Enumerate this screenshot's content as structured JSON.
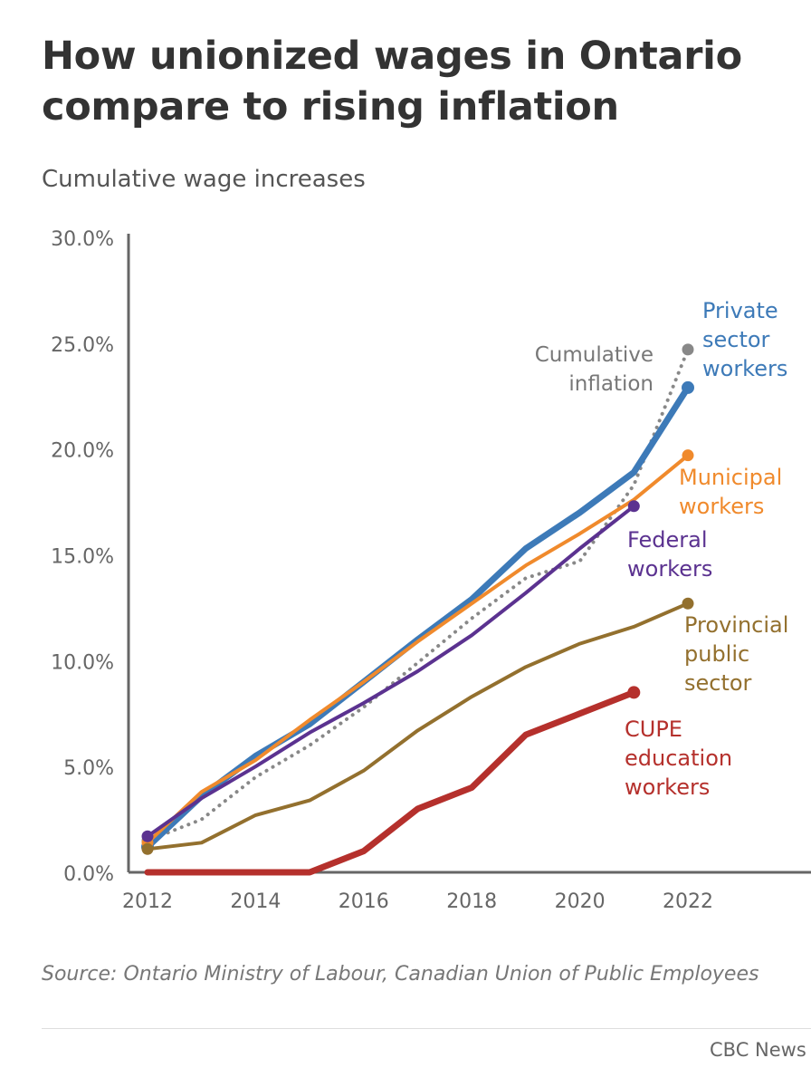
{
  "title": "How unionized wages in Ontario compare to rising inflation",
  "subtitle": "Cumulative wage increases",
  "source": "Source: Ontario Ministry of Labour, Canadian Union of Public Employees",
  "credit": "CBC News",
  "chart_data": {
    "type": "line",
    "ylabel": "Cumulative wage increases",
    "xlim": [
      2012,
      2022
    ],
    "ylim": [
      0,
      30
    ],
    "x_ticks": [
      2012,
      2014,
      2016,
      2018,
      2020,
      2022
    ],
    "y_ticks": [
      0,
      5,
      10,
      15,
      20,
      25,
      30
    ],
    "y_tick_labels": [
      "0.0%",
      "5.0%",
      "10.0%",
      "15.0%",
      "20.0%",
      "25.0%",
      "30.0%"
    ],
    "grid": false,
    "legend": "direct labels at line ends",
    "series": [
      {
        "name": "Cumulative inflation",
        "label_lines": [
          "Cumulative",
          "inflation"
        ],
        "color": "#888888",
        "style": "dotted",
        "x": [
          2012,
          2013,
          2014,
          2015,
          2016,
          2017,
          2018,
          2019,
          2020,
          2021,
          2022
        ],
        "y": [
          1.5,
          2.5,
          4.5,
          6.0,
          7.8,
          9.9,
          12.0,
          13.9,
          14.7,
          18.3,
          24.7
        ]
      },
      {
        "name": "Private sector workers",
        "label_lines": [
          "Private",
          "sector",
          "workers"
        ],
        "color": "#3d7ab8",
        "style": "thick",
        "x": [
          2012,
          2013,
          2014,
          2015,
          2016,
          2017,
          2018,
          2019,
          2020,
          2021,
          2022
        ],
        "y": [
          1.2,
          3.6,
          5.5,
          7.0,
          9.0,
          11.0,
          12.9,
          15.3,
          17.0,
          18.9,
          22.9
        ]
      },
      {
        "name": "Municipal workers",
        "label_lines": [
          "Municipal",
          "workers"
        ],
        "color": "#f08a2c",
        "style": "normal",
        "x": [
          2012,
          2013,
          2014,
          2015,
          2016,
          2017,
          2018,
          2019,
          2020,
          2021,
          2022
        ],
        "y": [
          1.4,
          3.8,
          5.3,
          7.2,
          9.0,
          10.9,
          12.7,
          14.5,
          16.0,
          17.6,
          19.7
        ]
      },
      {
        "name": "Federal workers",
        "label_lines": [
          "Federal",
          "workers"
        ],
        "color": "#5b3290",
        "style": "normal",
        "x": [
          2012,
          2013,
          2014,
          2015,
          2016,
          2017,
          2018,
          2019,
          2020,
          2021
        ],
        "y": [
          1.7,
          3.5,
          5.0,
          6.6,
          8.0,
          9.5,
          11.2,
          13.2,
          15.3,
          17.3
        ]
      },
      {
        "name": "Provincial public sector",
        "label_lines": [
          "Provincial",
          "public",
          "sector"
        ],
        "color": "#93702e",
        "style": "normal",
        "x": [
          2012,
          2013,
          2014,
          2015,
          2016,
          2017,
          2018,
          2019,
          2020,
          2021,
          2022
        ],
        "y": [
          1.1,
          1.4,
          2.7,
          3.4,
          4.8,
          6.7,
          8.3,
          9.7,
          10.8,
          11.6,
          12.7
        ]
      },
      {
        "name": "CUPE education workers",
        "label_lines": [
          "CUPE",
          "education",
          "workers"
        ],
        "color": "#b5302c",
        "style": "thick",
        "x": [
          2012,
          2013,
          2014,
          2015,
          2016,
          2017,
          2018,
          2019,
          2020,
          2021
        ],
        "y": [
          0.0,
          0.0,
          0.0,
          0.0,
          1.0,
          3.0,
          4.0,
          6.5,
          7.5,
          8.5
        ]
      }
    ]
  }
}
